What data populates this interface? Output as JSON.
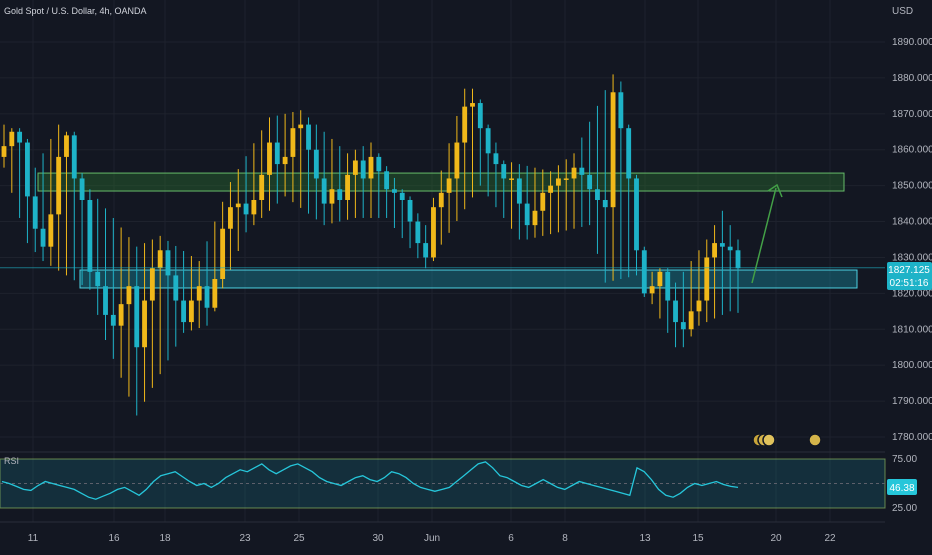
{
  "header": {
    "symbol_title": "Gold Spot / U.S. Dollar, 4h, OANDA",
    "currency": "USD"
  },
  "colors": {
    "background": "#131722",
    "up": "#f0b81a",
    "down": "#1eb3c8",
    "green_zone": "#2e7d32",
    "blue_zone": "#1aa0b8",
    "rsi": "#26c6da",
    "arrow": "#43a047"
  },
  "chart_data": [
    {
      "type": "candlestick",
      "title": "Gold Spot / U.S. Dollar, 4h, OANDA",
      "ylabel": "USD",
      "ylim": [
        1775,
        1900
      ],
      "y_ticks": [
        1780,
        1790,
        1800,
        1810,
        1820,
        1830,
        1840,
        1850,
        1860,
        1870,
        1880,
        1890
      ],
      "y_tick_labels": [
        "1780.000",
        "1790.000",
        "1800.000",
        "1810.000",
        "1820.000",
        "1830.000",
        "1840.000",
        "1850.000",
        "1860.000",
        "1870.000",
        "1880.000",
        "1890.000"
      ],
      "x_ticks": [
        "11",
        "16",
        "18",
        "23",
        "25",
        "30",
        "Jun",
        "6",
        "8",
        "13",
        "15",
        "20",
        "22"
      ],
      "last_price": "1827.125",
      "countdown": "02:51:16",
      "last_price_value": 1827.125,
      "zones": [
        {
          "name": "resistance",
          "y_from": 1848.5,
          "y_to": 1853.5
        },
        {
          "name": "support",
          "y_from": 1821.5,
          "y_to": 1826.5
        }
      ],
      "candles_close_path": [
        [
          0,
          1861
        ],
        [
          1,
          1865
        ],
        [
          2,
          1862
        ],
        [
          3,
          1847
        ],
        [
          4,
          1838
        ],
        [
          5,
          1833
        ],
        [
          6,
          1842
        ],
        [
          7,
          1858
        ],
        [
          8,
          1864
        ],
        [
          9,
          1852
        ],
        [
          10,
          1846
        ],
        [
          11,
          1826
        ],
        [
          12,
          1822
        ],
        [
          13,
          1814
        ],
        [
          14,
          1811
        ],
        [
          15,
          1817
        ],
        [
          16,
          1822
        ],
        [
          17,
          1805
        ],
        [
          18,
          1818
        ],
        [
          19,
          1827
        ],
        [
          20,
          1832
        ],
        [
          21,
          1825
        ],
        [
          22,
          1818
        ],
        [
          23,
          1812
        ],
        [
          24,
          1818
        ],
        [
          25,
          1822
        ],
        [
          26,
          1816
        ],
        [
          27,
          1824
        ],
        [
          28,
          1838
        ],
        [
          29,
          1844
        ],
        [
          30,
          1845
        ],
        [
          31,
          1842
        ],
        [
          32,
          1846
        ],
        [
          33,
          1853
        ],
        [
          34,
          1862
        ],
        [
          35,
          1856
        ],
        [
          36,
          1858
        ],
        [
          37,
          1866
        ],
        [
          38,
          1867
        ],
        [
          39,
          1860
        ],
        [
          40,
          1852
        ],
        [
          41,
          1845
        ],
        [
          42,
          1849
        ],
        [
          43,
          1846
        ],
        [
          44,
          1853
        ],
        [
          45,
          1857
        ],
        [
          46,
          1852
        ],
        [
          47,
          1858
        ],
        [
          48,
          1854
        ],
        [
          49,
          1849
        ],
        [
          50,
          1848
        ],
        [
          51,
          1846
        ],
        [
          52,
          1840
        ],
        [
          53,
          1834
        ],
        [
          54,
          1830
        ],
        [
          55,
          1844
        ],
        [
          56,
          1848
        ],
        [
          57,
          1852
        ],
        [
          58,
          1862
        ],
        [
          59,
          1872
        ],
        [
          60,
          1873
        ],
        [
          61,
          1866
        ],
        [
          62,
          1859
        ],
        [
          63,
          1856
        ],
        [
          64,
          1852
        ],
        [
          65,
          1852
        ],
        [
          66,
          1845
        ],
        [
          67,
          1839
        ],
        [
          68,
          1843
        ],
        [
          69,
          1848
        ],
        [
          70,
          1850
        ],
        [
          71,
          1852
        ],
        [
          72,
          1852
        ],
        [
          73,
          1855
        ],
        [
          74,
          1853
        ],
        [
          75,
          1849
        ],
        [
          76,
          1846
        ],
        [
          77,
          1844
        ],
        [
          78,
          1876
        ],
        [
          79,
          1866
        ],
        [
          80,
          1852
        ],
        [
          81,
          1832
        ],
        [
          82,
          1820
        ],
        [
          83,
          1822
        ],
        [
          84,
          1826
        ],
        [
          85,
          1818
        ],
        [
          86,
          1812
        ],
        [
          87,
          1810
        ],
        [
          88,
          1815
        ],
        [
          89,
          1818
        ],
        [
          90,
          1830
        ],
        [
          91,
          1834
        ],
        [
          92,
          1833
        ],
        [
          93,
          1832
        ],
        [
          94,
          1827
        ]
      ],
      "candles_high_path": [
        [
          0,
          1866
        ],
        [
          3,
          1850
        ],
        [
          7,
          1866
        ],
        [
          11,
          1848
        ],
        [
          17,
          1832
        ],
        [
          20,
          1835
        ],
        [
          25,
          1828
        ],
        [
          29,
          1850
        ],
        [
          34,
          1868
        ],
        [
          38,
          1870
        ],
        [
          44,
          1858
        ],
        [
          47,
          1861
        ],
        [
          54,
          1838
        ],
        [
          59,
          1876
        ],
        [
          60,
          1876
        ],
        [
          64,
          1856
        ],
        [
          70,
          1853
        ],
        [
          73,
          1858
        ],
        [
          78,
          1880
        ],
        [
          79,
          1878
        ],
        [
          82,
          1826
        ],
        [
          86,
          1822
        ],
        [
          90,
          1834
        ],
        [
          92,
          1842
        ],
        [
          94,
          1834
        ]
      ],
      "candles_low_path": [
        [
          0,
          1856
        ],
        [
          3,
          1835
        ],
        [
          5,
          1830
        ],
        [
          11,
          1822
        ],
        [
          13,
          1808
        ],
        [
          17,
          1787
        ],
        [
          23,
          1810
        ],
        [
          26,
          1812
        ],
        [
          31,
          1838
        ],
        [
          36,
          1848
        ],
        [
          41,
          1840
        ],
        [
          45,
          1842
        ],
        [
          49,
          1842
        ],
        [
          54,
          1828
        ],
        [
          61,
          1851
        ],
        [
          66,
          1836
        ],
        [
          67,
          1836
        ],
        [
          75,
          1840
        ],
        [
          77,
          1824
        ],
        [
          81,
          1826
        ],
        [
          86,
          1806
        ],
        [
          87,
          1806
        ],
        [
          89,
          1812
        ],
        [
          93,
          1816
        ]
      ]
    },
    {
      "type": "line",
      "title": "RSI",
      "ylim": [
        25,
        75
      ],
      "y_ticks": [
        75,
        25
      ],
      "y_tick_labels": [
        "75.00",
        "25.00"
      ],
      "band": [
        30,
        70
      ],
      "last_value": "46.38",
      "last_value_num": 46.38,
      "values": [
        52,
        50,
        47,
        44,
        43,
        48,
        52,
        50,
        48,
        46,
        44,
        40,
        36,
        34,
        37,
        40,
        44,
        46,
        42,
        38,
        44,
        52,
        58,
        60,
        62,
        57,
        52,
        48,
        50,
        46,
        50,
        56,
        60,
        64,
        62,
        66,
        70,
        64,
        60,
        64,
        68,
        70,
        66,
        62,
        56,
        52,
        50,
        48,
        52,
        56,
        58,
        54,
        52,
        56,
        62,
        60,
        56,
        50,
        46,
        44,
        42,
        44,
        46,
        52,
        58,
        64,
        70,
        72,
        66,
        58,
        56,
        52,
        48,
        46,
        50,
        54,
        50,
        46,
        44,
        48,
        52,
        50,
        48,
        46,
        44,
        42,
        40,
        38,
        66,
        62,
        54,
        44,
        38,
        36,
        40,
        46,
        50,
        48,
        50,
        52,
        49,
        47,
        46
      ]
    }
  ]
}
